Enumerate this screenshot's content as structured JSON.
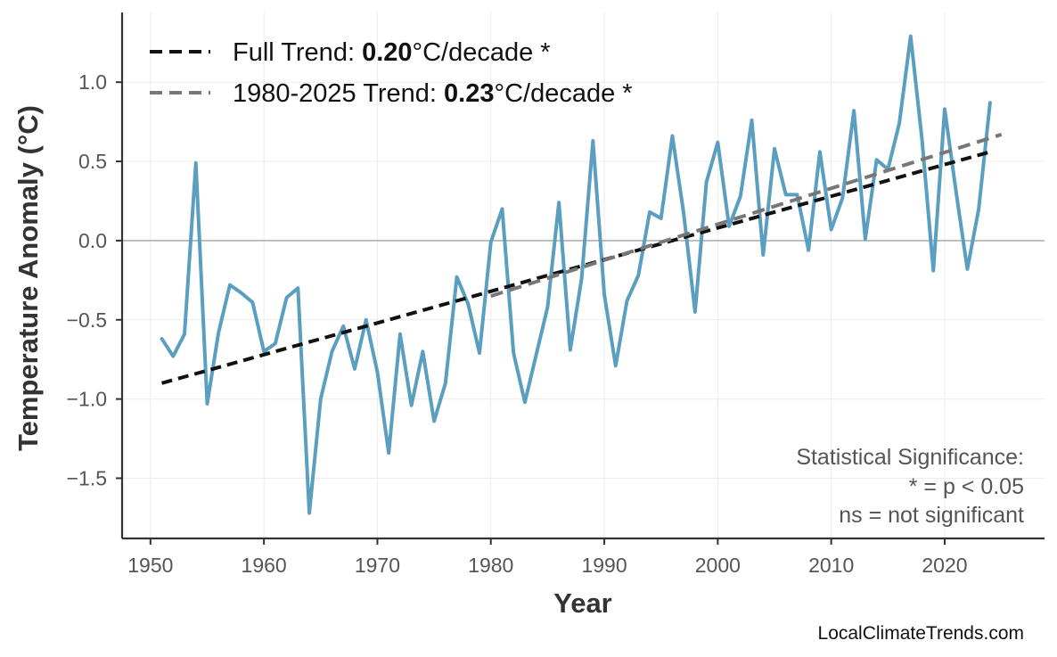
{
  "chart_data": {
    "type": "line",
    "xlabel": "Year",
    "ylabel": "Temperature Anomaly (°C)",
    "xlim": [
      1947.5,
      2028.8
    ],
    "ylim": [
      -1.88,
      1.44
    ],
    "xticks": [
      1950,
      1960,
      1970,
      1980,
      1990,
      2000,
      2010,
      2020
    ],
    "yticks": [
      -1.5,
      -1.0,
      -0.5,
      0.0,
      0.5,
      1.0
    ],
    "ytick_labels": [
      "−1.5",
      "−1.0",
      "−0.5",
      "0.0",
      "0.5",
      "1.0"
    ],
    "grid": true,
    "zero_line": true,
    "legend_position": "top-left",
    "series": [
      {
        "kind": "annual",
        "color": "#5a9fc0",
        "x": [
          1951,
          1952,
          1953,
          1954,
          1955,
          1956,
          1957,
          1958,
          1959,
          1960,
          1961,
          1962,
          1963,
          1964,
          1965,
          1966,
          1967,
          1968,
          1969,
          1970,
          1971,
          1972,
          1973,
          1974,
          1975,
          1976,
          1977,
          1978,
          1979,
          1980,
          1981,
          1982,
          1983,
          1984,
          1985,
          1986,
          1987,
          1988,
          1989,
          1990,
          1991,
          1992,
          1993,
          1994,
          1995,
          1996,
          1997,
          1998,
          1999,
          2000,
          2001,
          2002,
          2003,
          2004,
          2005,
          2006,
          2007,
          2008,
          2009,
          2010,
          2011,
          2012,
          2013,
          2014,
          2015,
          2016,
          2017,
          2018,
          2019,
          2020,
          2021,
          2022,
          2023,
          2024
        ],
        "y": [
          -0.62,
          -0.73,
          -0.59,
          0.49,
          -1.03,
          -0.58,
          -0.28,
          -0.33,
          -0.39,
          -0.7,
          -0.65,
          -0.36,
          -0.3,
          -1.72,
          -1.0,
          -0.7,
          -0.54,
          -0.81,
          -0.5,
          -0.83,
          -1.34,
          -0.59,
          -1.04,
          -0.7,
          -1.14,
          -0.9,
          -0.23,
          -0.4,
          -0.71,
          -0.01,
          0.2,
          -0.71,
          -1.02,
          -0.72,
          -0.42,
          0.24,
          -0.69,
          -0.24,
          0.63,
          -0.34,
          -0.79,
          -0.38,
          -0.22,
          0.18,
          0.14,
          0.66,
          0.17,
          -0.45,
          0.37,
          0.62,
          0.09,
          0.28,
          0.76,
          -0.09,
          0.58,
          0.29,
          0.29,
          -0.06,
          0.56,
          0.07,
          0.27,
          0.82,
          0.01,
          0.51,
          0.45,
          0.74,
          1.29,
          0.64,
          -0.19,
          0.83,
          0.31,
          -0.18,
          0.2,
          0.87
        ]
      },
      {
        "kind": "trend",
        "color": "#111111",
        "dash": "full",
        "x": [
          1951,
          2024
        ],
        "y": [
          -0.9,
          0.56
        ]
      },
      {
        "kind": "trend",
        "color": "#777777",
        "dash": "recent",
        "x": [
          1980,
          2025
        ],
        "y": [
          -0.35,
          0.67
        ]
      }
    ],
    "legend": [
      {
        "prefix": "Full Trend: ",
        "value": "0.20",
        "suffix": "°C/decade *",
        "color": "#111111"
      },
      {
        "prefix": "1980-2025 Trend: ",
        "value": "0.23",
        "suffix": "°C/decade *",
        "color": "#777777"
      }
    ],
    "annotation": [
      "Statistical Significance:",
      "* = p < 0.05",
      "ns = not significant"
    ],
    "credit": "LocalClimateTrends.com"
  }
}
